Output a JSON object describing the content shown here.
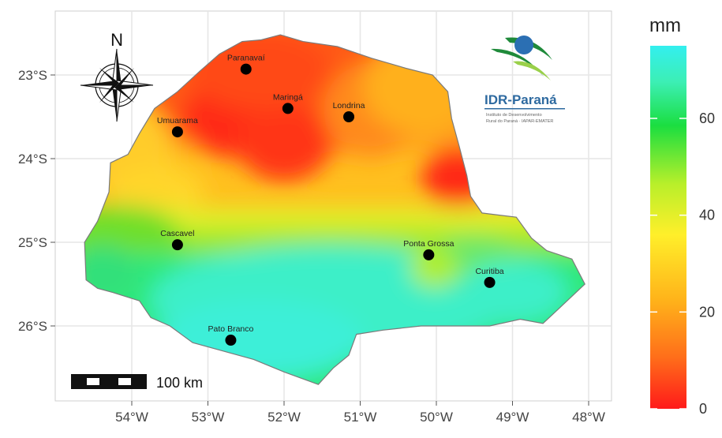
{
  "map": {
    "lon_ticks": [
      "54°W",
      "53°W",
      "52°W",
      "51°W",
      "50°W",
      "49°W",
      "48°W"
    ],
    "lat_ticks": [
      "23°S",
      "24°S",
      "25°S",
      "26°S"
    ],
    "cities": [
      {
        "name": "Paranavaí",
        "lon": -52.5,
        "lat": -22.93
      },
      {
        "name": "Maringá",
        "lon": -51.95,
        "lat": -23.4
      },
      {
        "name": "Londrina",
        "lon": -51.15,
        "lat": -23.5
      },
      {
        "name": "Umuarama",
        "lon": -53.4,
        "lat": -23.68
      },
      {
        "name": "Cascavel",
        "lon": -53.4,
        "lat": -25.03
      },
      {
        "name": "Ponta Grossa",
        "lon": -50.1,
        "lat": -25.15
      },
      {
        "name": "Curitiba",
        "lon": -49.3,
        "lat": -25.48
      },
      {
        "name": "Pato Branco",
        "lon": -52.7,
        "lat": -26.17
      }
    ],
    "compass_label": "N",
    "scale_bar_label": "100 km"
  },
  "legend": {
    "title": "mm",
    "ticks": [
      0,
      20,
      40,
      60
    ],
    "range": [
      0,
      75
    ]
  },
  "logo": {
    "name": "IDR-Paraná",
    "subtitle_line1": "Instituto de Desenvolvimento",
    "subtitle_line2": "Rural do Paraná · IAPAR-EMATER"
  }
}
